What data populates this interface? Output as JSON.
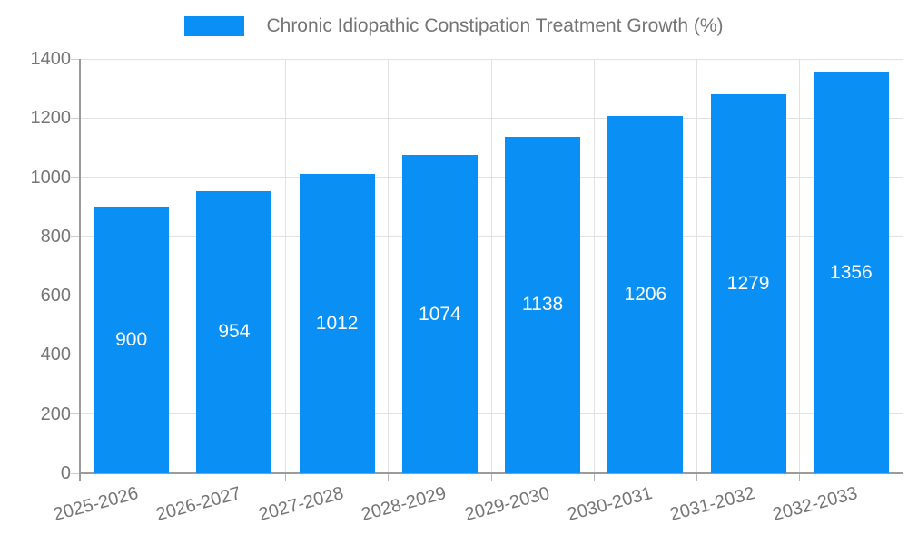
{
  "legend": {
    "label": "Chronic Idiopathic Constipation Treatment Growth (%)"
  },
  "chart_data": {
    "type": "bar",
    "title": "Chronic Idiopathic Constipation Treatment Growth (%)",
    "categories": [
      "2025-2026",
      "2026-2027",
      "2027-2028",
      "2028-2029",
      "2029-2030",
      "2030-2031",
      "2031-2032",
      "2032-2033"
    ],
    "values": [
      900,
      954,
      1012,
      1074,
      1138,
      1206,
      1279,
      1356
    ],
    "xlabel": "",
    "ylabel": "",
    "ylim": [
      0,
      1400
    ],
    "ytick_step": 200,
    "ytick_labels": [
      "0",
      "200",
      "400",
      "600",
      "800",
      "1000",
      "1200",
      "1400"
    ],
    "grid": true,
    "legend_position": "top",
    "value_labels": "inside-center"
  },
  "colors": {
    "bar": "#0a90f5",
    "gridline": "#e2e2e2",
    "axis": "#9b9b9b",
    "tick": "#b5b5b5",
    "text": "#757575",
    "value_label": "#ffffff",
    "background": "#ffffff"
  }
}
